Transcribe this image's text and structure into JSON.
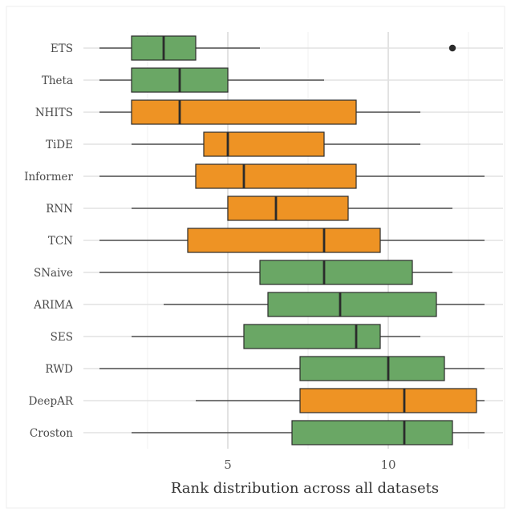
{
  "chart_data": {
    "type": "boxplot",
    "orientation": "horizontal",
    "xlabel": "Rank distribution across all datasets",
    "ylabel": "",
    "title": "",
    "xlim": [
      0.5,
      13.7
    ],
    "xticks": [
      5,
      10
    ],
    "grid": "vertical major and minor, horizontal per category",
    "colors": {
      "statistical": "#6aa765",
      "neural": "#ee9324"
    },
    "series": [
      {
        "name": "ETS",
        "group": "statistical",
        "whisker_low": 1,
        "q1": 2,
        "median": 3,
        "q3": 4,
        "whisker_high": 6,
        "outliers": [
          12
        ]
      },
      {
        "name": "Theta",
        "group": "statistical",
        "whisker_low": 1,
        "q1": 2,
        "median": 3.5,
        "q3": 5,
        "whisker_high": 8,
        "outliers": []
      },
      {
        "name": "NHITS",
        "group": "neural",
        "whisker_low": 1,
        "q1": 2,
        "median": 3.5,
        "q3": 9,
        "whisker_high": 11,
        "outliers": []
      },
      {
        "name": "TiDE",
        "group": "neural",
        "whisker_low": 2,
        "q1": 4.25,
        "median": 5,
        "q3": 8,
        "whisker_high": 11,
        "outliers": []
      },
      {
        "name": "Informer",
        "group": "neural",
        "whisker_low": 1,
        "q1": 4,
        "median": 5.5,
        "q3": 9,
        "whisker_high": 13,
        "outliers": []
      },
      {
        "name": "RNN",
        "group": "neural",
        "whisker_low": 2,
        "q1": 5,
        "median": 6.5,
        "q3": 8.75,
        "whisker_high": 12,
        "outliers": []
      },
      {
        "name": "TCN",
        "group": "neural",
        "whisker_low": 1,
        "q1": 3.75,
        "median": 8,
        "q3": 9.75,
        "whisker_high": 13,
        "outliers": []
      },
      {
        "name": "SNaive",
        "group": "statistical",
        "whisker_low": 1,
        "q1": 6,
        "median": 8,
        "q3": 10.75,
        "whisker_high": 12,
        "outliers": []
      },
      {
        "name": "ARIMA",
        "group": "statistical",
        "whisker_low": 3,
        "q1": 6.25,
        "median": 8.5,
        "q3": 11.5,
        "whisker_high": 13,
        "outliers": []
      },
      {
        "name": "SES",
        "group": "statistical",
        "whisker_low": 2,
        "q1": 5.5,
        "median": 9,
        "q3": 9.75,
        "whisker_high": 11,
        "outliers": []
      },
      {
        "name": "RWD",
        "group": "statistical",
        "whisker_low": 1,
        "q1": 7.25,
        "median": 10,
        "q3": 11.75,
        "whisker_high": 13,
        "outliers": []
      },
      {
        "name": "DeepAR",
        "group": "neural",
        "whisker_low": 4,
        "q1": 7.25,
        "median": 10.5,
        "q3": 12.75,
        "whisker_high": 13,
        "outliers": []
      },
      {
        "name": "Croston",
        "group": "statistical",
        "whisker_low": 2,
        "q1": 7,
        "median": 10.5,
        "q3": 12,
        "whisker_high": 13,
        "outliers": []
      }
    ]
  }
}
